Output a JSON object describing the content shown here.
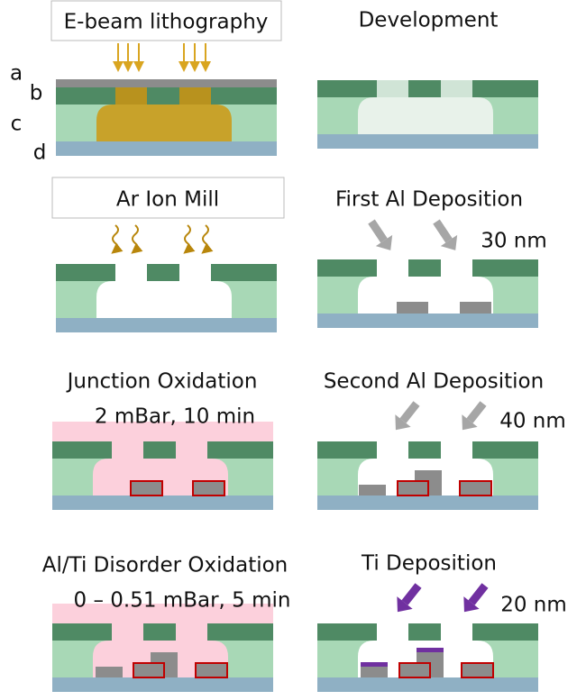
{
  "layer_labels": [
    "a",
    "b",
    "c",
    "d"
  ],
  "steps": [
    {
      "title": "E-beam lithography"
    },
    {
      "title": "Development"
    },
    {
      "title": "Ar Ion Mill"
    },
    {
      "title": "First Al Deposition",
      "thickness": "30 nm"
    },
    {
      "title": "Junction Oxidation",
      "condition": "2 mBar, 10 min"
    },
    {
      "title": "Second Al Deposition",
      "thickness": "40 nm"
    },
    {
      "title": "Al/Ti Disorder Oxidation",
      "condition": "0 – 0.51 mBar, 5 min"
    },
    {
      "title": "Ti Deposition",
      "thickness": "20 nm"
    }
  ]
}
